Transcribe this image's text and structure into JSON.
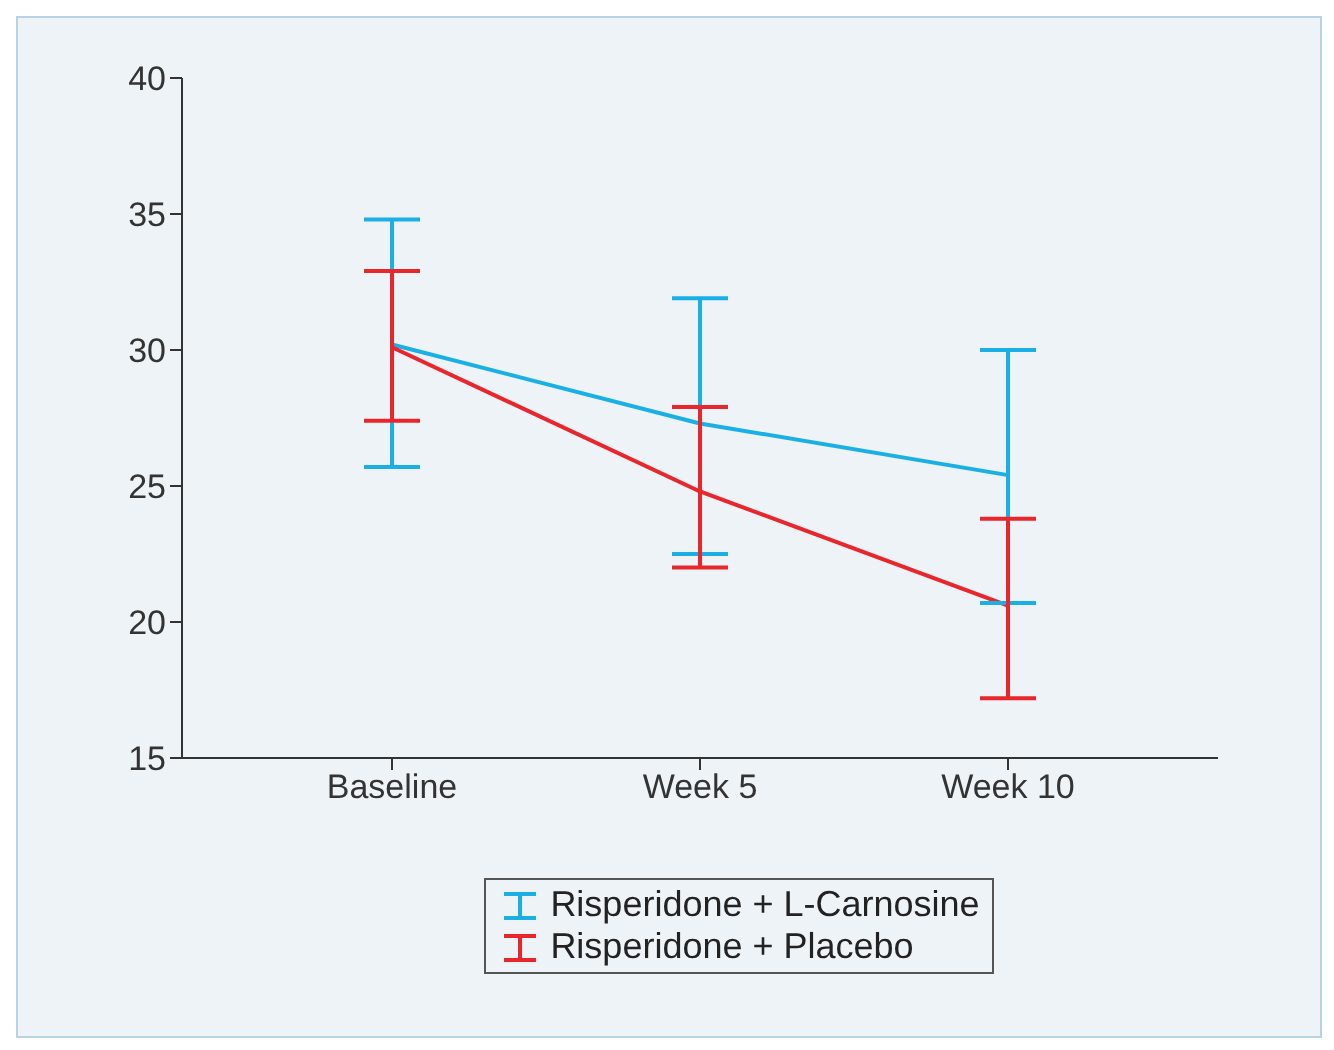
{
  "chart_data": {
    "type": "line",
    "categories": [
      "Baseline",
      "Week 5",
      "Week 10"
    ],
    "series": [
      {
        "name": "Risperidone + L-Carnosine",
        "color": "#1ab0e6",
        "values": [
          30.2,
          27.3,
          25.4
        ],
        "errors": [
          [
            25.7,
            34.8
          ],
          [
            22.5,
            31.9
          ],
          [
            20.7,
            30.0
          ]
        ]
      },
      {
        "name": "Risperidone + Placebo",
        "color": "#e8262b",
        "values": [
          30.1,
          24.8,
          20.6
        ],
        "errors": [
          [
            27.4,
            32.9
          ],
          [
            22.0,
            27.9
          ],
          [
            17.2,
            23.8
          ]
        ]
      }
    ],
    "ylim": [
      15,
      40
    ],
    "yticks": [
      15,
      20,
      25,
      30,
      35,
      40
    ],
    "grid": false,
    "legend": "bottom",
    "marker": "none",
    "line_style": "solid"
  }
}
